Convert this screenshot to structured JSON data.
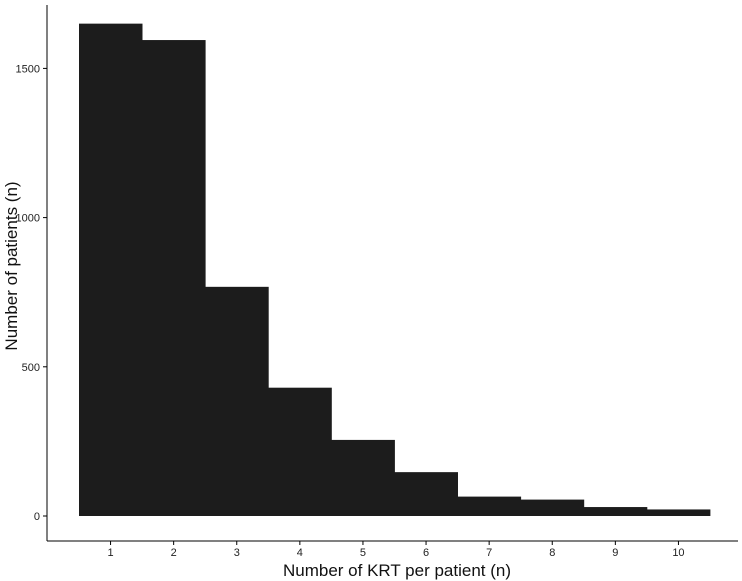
{
  "chart_data": {
    "type": "bar",
    "title": "",
    "xlabel": "Number of KRT per patient (n)",
    "ylabel": "Number of patients (n)",
    "categories": [
      "1",
      "2",
      "3",
      "4",
      "5",
      "6",
      "7",
      "8",
      "9",
      "10"
    ],
    "values": [
      1650,
      1595,
      768,
      430,
      255,
      147,
      65,
      55,
      30,
      22
    ],
    "ylim": [
      0,
      1700
    ],
    "yticks": [
      0,
      500,
      1000,
      1500
    ],
    "bar_color": "#1c1c1c",
    "grid": false,
    "legend": "none"
  }
}
